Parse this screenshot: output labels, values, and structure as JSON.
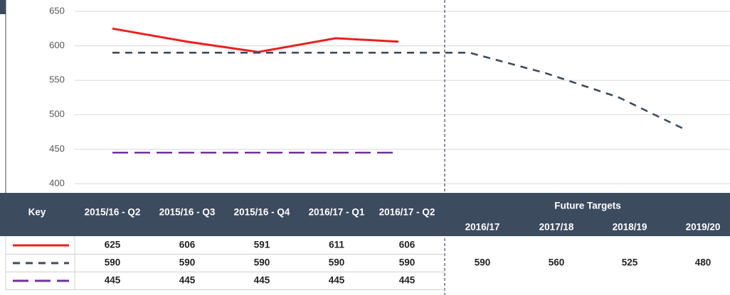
{
  "chart_data": {
    "type": "line",
    "categories": [
      "2015/16 - Q2",
      "2015/16 - Q3",
      "2015/16 - Q4",
      "2016/17 - Q1",
      "2016/17 - Q2",
      "2016/17",
      "2017/18",
      "2018/19",
      "2019/20"
    ],
    "key_header": "Key",
    "future_header": "Future Targets",
    "series": [
      {
        "color": "#e8201e",
        "dash": "none",
        "values": [
          625,
          606,
          591,
          611,
          606,
          null,
          null,
          null,
          null
        ]
      },
      {
        "color": "#3e4a5e",
        "dash": "10,8",
        "values": [
          590,
          590,
          590,
          590,
          590,
          590,
          560,
          525,
          480
        ]
      },
      {
        "color": "#7030a0",
        "dash": "22,9",
        "values": [
          445,
          445,
          445,
          445,
          445,
          null,
          null,
          null,
          null
        ]
      }
    ],
    "ylim": [
      400,
      650
    ],
    "yticks": [
      400,
      450,
      500,
      550,
      600,
      650
    ],
    "grid": true
  }
}
